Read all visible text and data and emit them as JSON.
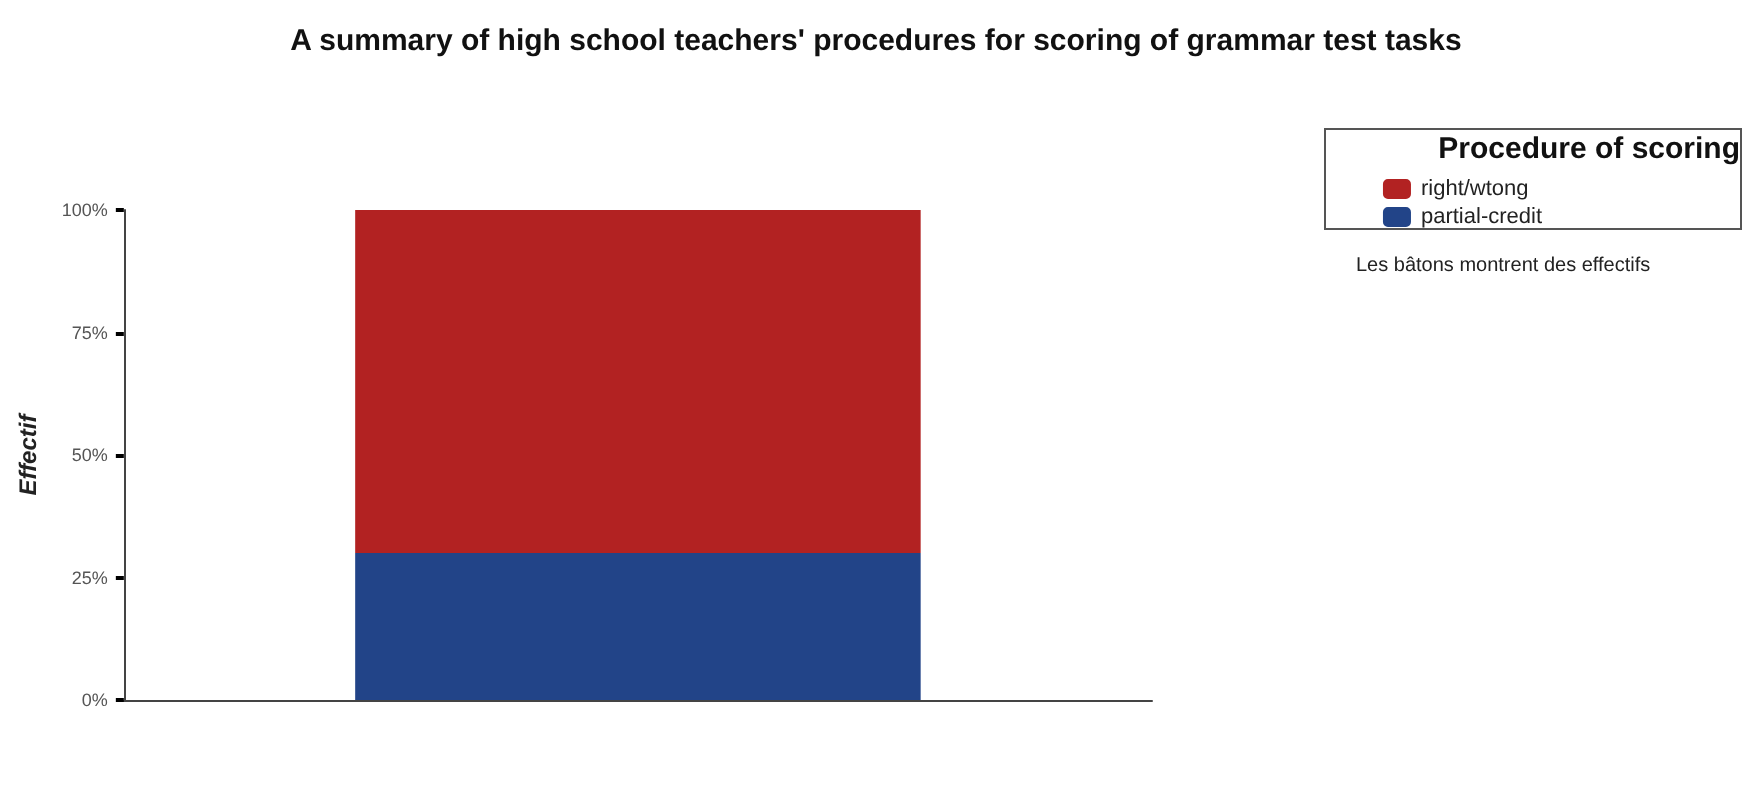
{
  "chart_data": {
    "type": "bar",
    "title": "A summary of high school teachers' procedures for scoring of grammar test tasks",
    "ylabel": "Effectif",
    "legend_title": "Procedure of scoring",
    "annotations": [
      "Les bâtons montrent des effectifs"
    ],
    "categories": [
      null
    ],
    "stacked": true,
    "series": [
      {
        "name": "partial-credit",
        "color": "#224488",
        "values": [
          30
        ]
      },
      {
        "name": "right/wtong",
        "color": "#b22222",
        "values": [
          70
        ]
      }
    ],
    "ylim": [
      0,
      100
    ],
    "yticks": [
      {
        "value": 0,
        "label": "0%"
      },
      {
        "value": 25,
        "label": "25%"
      },
      {
        "value": 50,
        "label": "50%"
      },
      {
        "value": 75,
        "label": "75%"
      },
      {
        "value": 100,
        "label": "100%"
      }
    ],
    "grid": false,
    "legend": "top right"
  }
}
